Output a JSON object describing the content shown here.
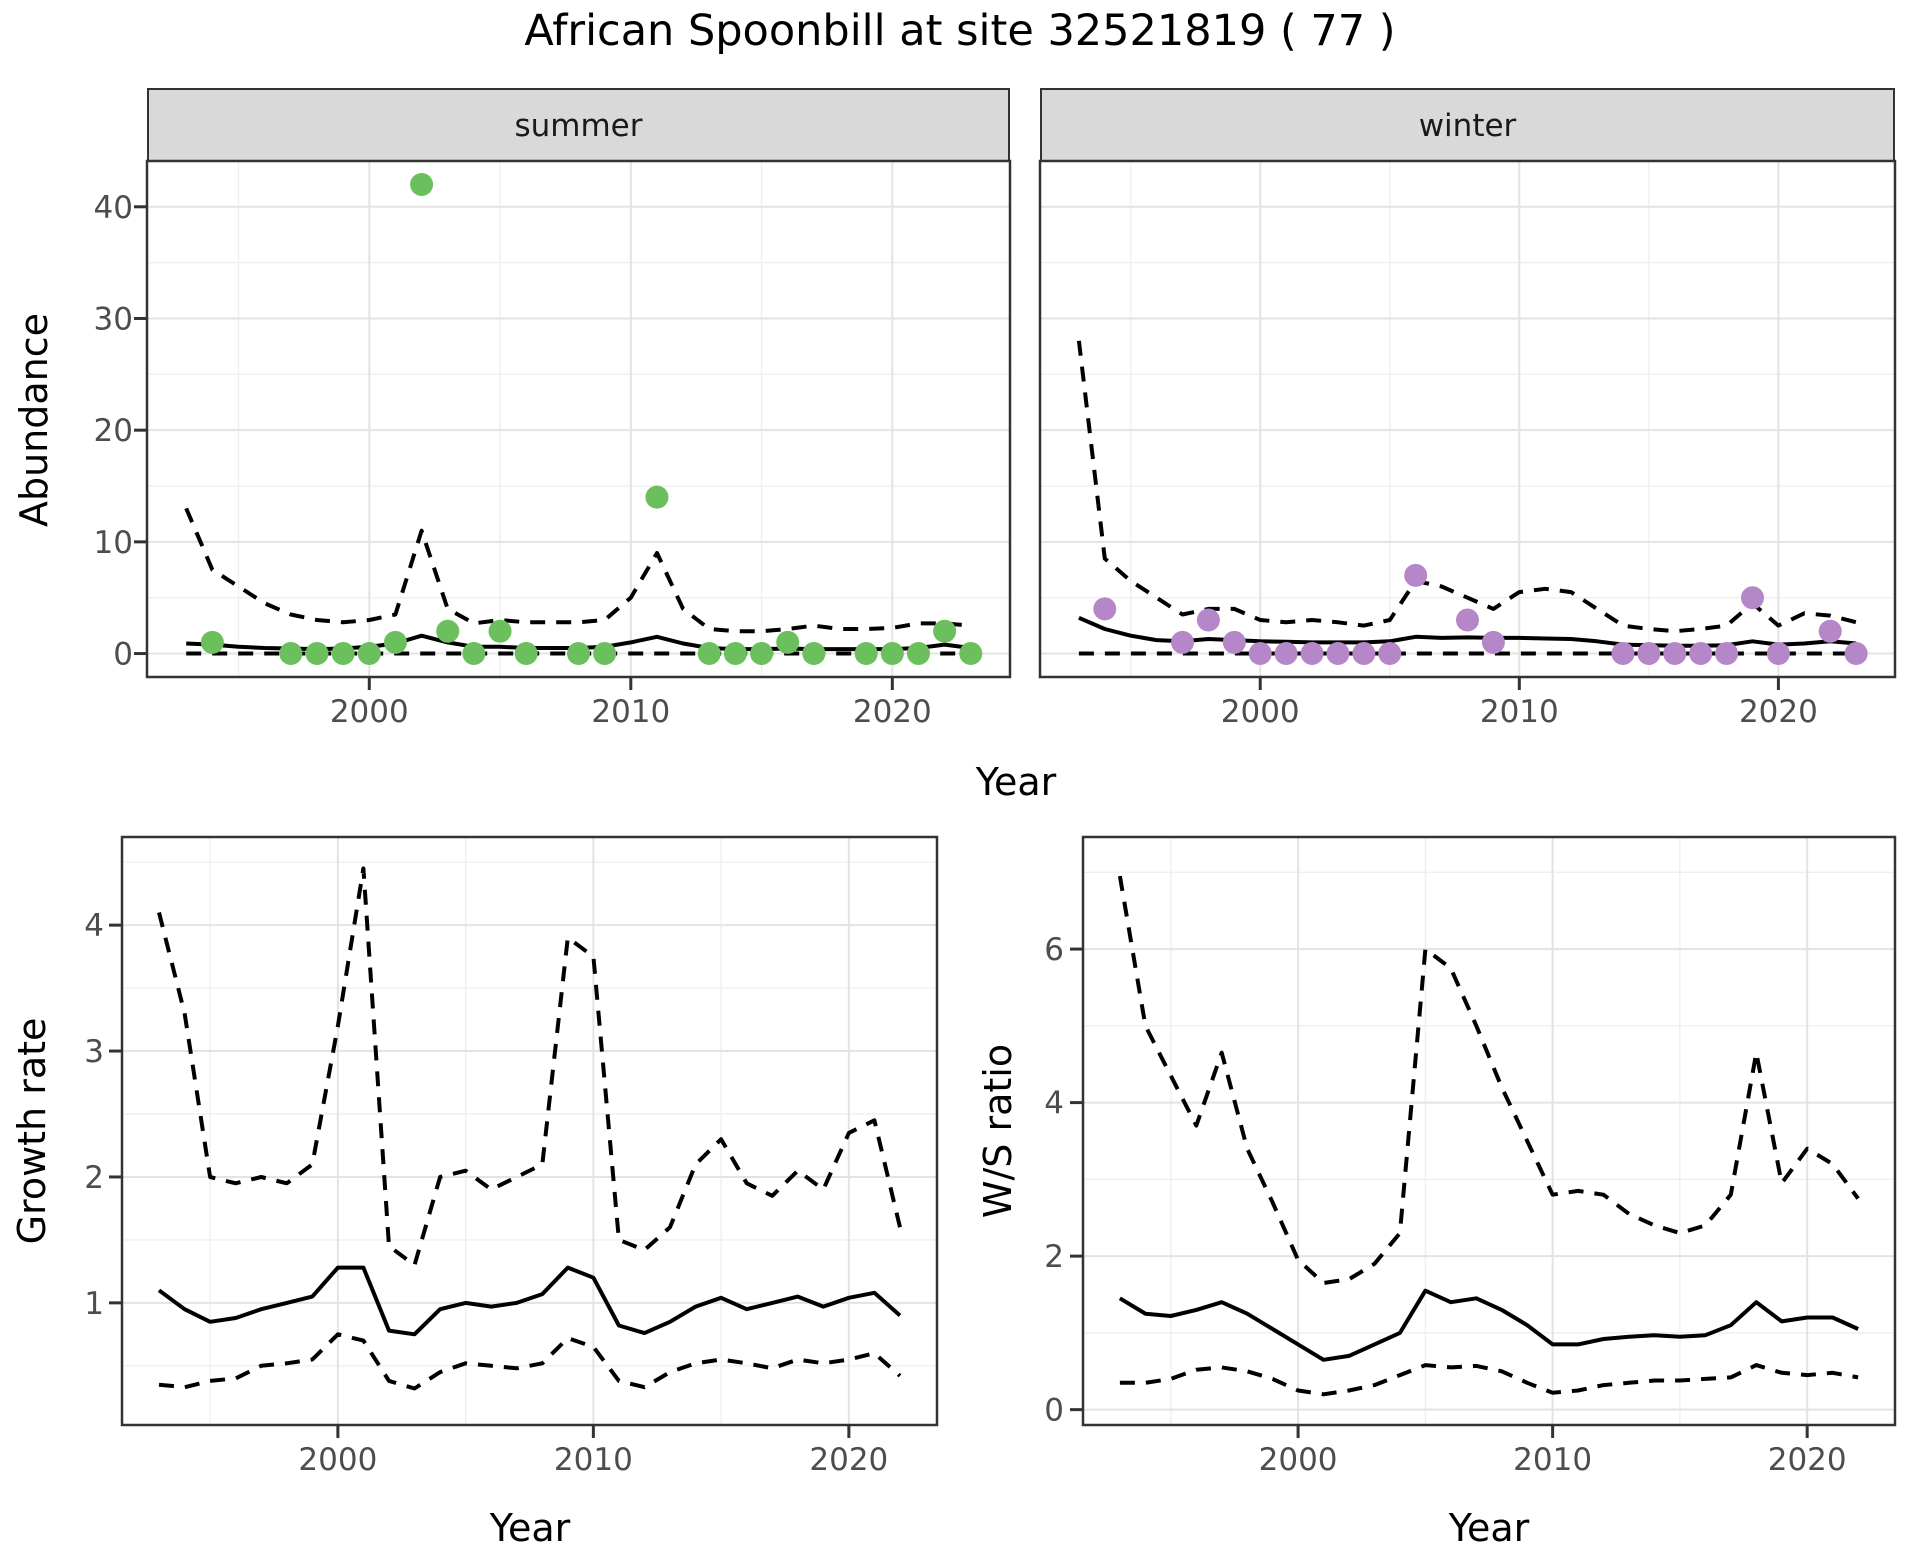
{
  "title": "African Spoonbill at site 32521819 ( 77 )",
  "labels": {
    "year_axis": "Year",
    "abundance_axis": "Abundance",
    "growth_axis": "Growth rate",
    "ws_axis": "W/S ratio",
    "facet_summer": "summer",
    "facet_winter": "winter"
  },
  "colors": {
    "summer_point": "#6bbf5c",
    "winter_point": "#b587c8",
    "line": "#000000",
    "grid_major": "#e3e3e3",
    "grid_minor": "#efefef",
    "strip_bg": "#d9d9d9",
    "panel_border": "#333333",
    "tick_label": "#4d4d4d",
    "tick_mark": "#333333"
  },
  "chart_data": [
    {
      "id": "abundance-summer",
      "type": "line",
      "facet_label": "summer",
      "xlabel": "Year",
      "ylabel": "Abundance",
      "xlim": [
        1991.5,
        2024.5
      ],
      "ylim": [
        -2.1,
        44.1
      ],
      "x_ticks": [
        2000,
        2010,
        2020
      ],
      "x_minor": [
        1995,
        2005,
        2015
      ],
      "y_ticks": [
        0,
        10,
        20,
        30,
        40
      ],
      "y_minor": [
        5,
        15,
        25,
        35
      ],
      "show_y_tick_labels": true,
      "x": [
        1993,
        1994,
        1995,
        1996,
        1997,
        1998,
        1999,
        2000,
        2001,
        2002,
        2003,
        2004,
        2005,
        2006,
        2007,
        2008,
        2009,
        2010,
        2011,
        2012,
        2013,
        2014,
        2015,
        2016,
        2017,
        2018,
        2019,
        2020,
        2021,
        2022,
        2023
      ],
      "series": [
        {
          "name": "median",
          "style": "solid",
          "values": [
            0.9,
            0.8,
            0.6,
            0.5,
            0.45,
            0.4,
            0.45,
            0.6,
            0.9,
            1.6,
            1.0,
            0.6,
            0.6,
            0.5,
            0.5,
            0.5,
            0.6,
            1.0,
            1.5,
            0.9,
            0.5,
            0.4,
            0.4,
            0.45,
            0.4,
            0.4,
            0.4,
            0.4,
            0.5,
            0.8,
            0.5
          ]
        },
        {
          "name": "upper-ci",
          "style": "dashed",
          "values": [
            13,
            7.5,
            6,
            4.5,
            3.5,
            3,
            2.8,
            3,
            3.5,
            11,
            4,
            2.7,
            3,
            2.8,
            2.8,
            2.8,
            3,
            5,
            9,
            4,
            2.2,
            2,
            2,
            2.2,
            2.5,
            2.2,
            2.2,
            2.3,
            2.7,
            2.7,
            2.5
          ]
        },
        {
          "name": "lower-ci",
          "style": "dashed",
          "values": [
            0,
            0,
            0,
            0,
            0,
            0,
            0,
            0,
            0,
            0,
            0,
            0,
            0,
            0,
            0,
            0,
            0,
            0,
            0,
            0,
            0,
            0,
            0,
            0,
            0,
            0,
            0,
            0,
            0,
            0,
            0
          ]
        }
      ],
      "points": {
        "color_key": "summer_point",
        "xy": [
          [
            1994,
            1
          ],
          [
            1997,
            0
          ],
          [
            1998,
            0
          ],
          [
            1999,
            0
          ],
          [
            2000,
            0
          ],
          [
            2001,
            1
          ],
          [
            2002,
            42
          ],
          [
            2003,
            2
          ],
          [
            2004,
            0
          ],
          [
            2005,
            2
          ],
          [
            2006,
            0
          ],
          [
            2008,
            0
          ],
          [
            2009,
            0
          ],
          [
            2011,
            14
          ],
          [
            2013,
            0
          ],
          [
            2014,
            0
          ],
          [
            2015,
            0
          ],
          [
            2016,
            1
          ],
          [
            2017,
            0
          ],
          [
            2019,
            0
          ],
          [
            2020,
            0
          ],
          [
            2021,
            0
          ],
          [
            2022,
            2
          ],
          [
            2023,
            0
          ]
        ]
      }
    },
    {
      "id": "abundance-winter",
      "type": "line",
      "facet_label": "winter",
      "xlabel": "Year",
      "ylabel": "Abundance",
      "xlim": [
        1991.5,
        2024.5
      ],
      "ylim": [
        -2.1,
        44.1
      ],
      "x_ticks": [
        2000,
        2010,
        2020
      ],
      "x_minor": [
        1995,
        2005,
        2015
      ],
      "y_ticks": [
        0,
        10,
        20,
        30,
        40
      ],
      "y_minor": [
        5,
        15,
        25,
        35
      ],
      "show_y_tick_labels": false,
      "x": [
        1993,
        1994,
        1995,
        1996,
        1997,
        1998,
        1999,
        2000,
        2001,
        2002,
        2003,
        2004,
        2005,
        2006,
        2007,
        2008,
        2009,
        2010,
        2011,
        2012,
        2013,
        2014,
        2015,
        2016,
        2017,
        2018,
        2019,
        2020,
        2021,
        2022,
        2023
      ],
      "series": [
        {
          "name": "median",
          "style": "solid",
          "values": [
            3.2,
            2.2,
            1.6,
            1.2,
            1.1,
            1.3,
            1.2,
            1.1,
            1.05,
            1.0,
            1.0,
            1.0,
            1.1,
            1.5,
            1.4,
            1.45,
            1.4,
            1.4,
            1.35,
            1.3,
            1.1,
            0.8,
            0.75,
            0.7,
            0.7,
            0.75,
            1.1,
            0.8,
            0.9,
            1.1,
            0.9
          ]
        },
        {
          "name": "upper-ci",
          "style": "dashed",
          "values": [
            28,
            8.5,
            6.5,
            5,
            3.5,
            4,
            4,
            3,
            2.8,
            3,
            2.8,
            2.5,
            3,
            6.5,
            6,
            5,
            4,
            5.5,
            5.8,
            5.5,
            4,
            2.5,
            2.2,
            2,
            2.2,
            2.5,
            4.5,
            2.5,
            3.6,
            3.4,
            2.8
          ]
        },
        {
          "name": "lower-ci",
          "style": "dashed",
          "values": [
            0,
            0,
            0,
            0,
            0,
            0,
            0,
            0,
            0,
            0,
            0,
            0,
            0,
            0,
            0,
            0,
            0,
            0,
            0,
            0,
            0,
            0,
            0,
            0,
            0,
            0,
            0,
            0,
            0,
            0,
            0
          ]
        }
      ],
      "points": {
        "color_key": "winter_point",
        "xy": [
          [
            1994,
            4
          ],
          [
            1997,
            1
          ],
          [
            1998,
            3
          ],
          [
            1999,
            1
          ],
          [
            2000,
            0
          ],
          [
            2001,
            0
          ],
          [
            2002,
            0
          ],
          [
            2003,
            0
          ],
          [
            2004,
            0
          ],
          [
            2005,
            0
          ],
          [
            2006,
            7
          ],
          [
            2008,
            3
          ],
          [
            2009,
            1
          ],
          [
            2014,
            0
          ],
          [
            2015,
            0
          ],
          [
            2016,
            0
          ],
          [
            2017,
            0
          ],
          [
            2018,
            0
          ],
          [
            2019,
            5
          ],
          [
            2020,
            0
          ],
          [
            2022,
            2
          ],
          [
            2023,
            0
          ]
        ]
      }
    },
    {
      "id": "growth-rate",
      "type": "line",
      "facet_label": "",
      "xlabel": "Year",
      "ylabel": "Growth rate",
      "xlim": [
        1991.55,
        2023.45
      ],
      "ylim": [
        0.03,
        4.7
      ],
      "x_ticks": [
        2000,
        2010,
        2020
      ],
      "x_minor": [
        1995,
        2005,
        2015
      ],
      "y_ticks": [
        1,
        2,
        3,
        4
      ],
      "y_minor": [
        0.5,
        1.5,
        2.5,
        3.5,
        4.5
      ],
      "show_y_tick_labels": true,
      "x": [
        1993,
        1994,
        1995,
        1996,
        1997,
        1998,
        1999,
        2000,
        2001,
        2002,
        2003,
        2004,
        2005,
        2006,
        2007,
        2008,
        2009,
        2010,
        2011,
        2012,
        2013,
        2014,
        2015,
        2016,
        2017,
        2018,
        2019,
        2020,
        2021,
        2022
      ],
      "series": [
        {
          "name": "median",
          "style": "solid",
          "values": [
            1.1,
            0.95,
            0.85,
            0.88,
            0.95,
            1.0,
            1.05,
            1.28,
            1.28,
            0.78,
            0.75,
            0.95,
            1.0,
            0.97,
            1.0,
            1.07,
            1.28,
            1.2,
            0.82,
            0.76,
            0.85,
            0.97,
            1.04,
            0.95,
            1.0,
            1.05,
            0.97,
            1.04,
            1.08,
            0.9
          ]
        },
        {
          "name": "upper-ci",
          "style": "dashed",
          "values": [
            4.1,
            3.3,
            2.0,
            1.95,
            2.0,
            1.95,
            2.1,
            3.2,
            4.45,
            1.45,
            1.3,
            2.0,
            2.05,
            1.9,
            2.0,
            2.1,
            3.9,
            3.75,
            1.5,
            1.42,
            1.6,
            2.1,
            2.3,
            1.95,
            1.85,
            2.05,
            1.9,
            2.35,
            2.45,
            1.6
          ]
        },
        {
          "name": "lower-ci",
          "style": "dashed",
          "values": [
            0.35,
            0.33,
            0.38,
            0.4,
            0.5,
            0.52,
            0.55,
            0.75,
            0.7,
            0.38,
            0.32,
            0.45,
            0.52,
            0.5,
            0.48,
            0.52,
            0.72,
            0.65,
            0.38,
            0.33,
            0.45,
            0.52,
            0.55,
            0.52,
            0.48,
            0.55,
            0.52,
            0.55,
            0.6,
            0.42
          ]
        }
      ],
      "points": null
    },
    {
      "id": "ws-ratio",
      "type": "line",
      "facet_label": "",
      "xlabel": "Year",
      "ylabel": "W/S ratio",
      "xlim": [
        1991.55,
        2023.45
      ],
      "ylim": [
        -0.2,
        7.46
      ],
      "x_ticks": [
        2000,
        2010,
        2020
      ],
      "x_minor": [
        1995,
        2005,
        2015
      ],
      "y_ticks": [
        0,
        2,
        4,
        6
      ],
      "y_minor": [
        1,
        3,
        5,
        7
      ],
      "show_y_tick_labels": true,
      "x": [
        1993,
        1994,
        1995,
        1996,
        1997,
        1998,
        1999,
        2000,
        2001,
        2002,
        2003,
        2004,
        2005,
        2006,
        2007,
        2008,
        2009,
        2010,
        2011,
        2012,
        2013,
        2014,
        2015,
        2016,
        2017,
        2018,
        2019,
        2020,
        2021,
        2022
      ],
      "series": [
        {
          "name": "median",
          "style": "solid",
          "values": [
            1.45,
            1.25,
            1.22,
            1.3,
            1.4,
            1.25,
            1.05,
            0.85,
            0.65,
            0.7,
            0.85,
            1.0,
            1.55,
            1.4,
            1.45,
            1.3,
            1.1,
            0.85,
            0.85,
            0.92,
            0.95,
            0.97,
            0.95,
            0.97,
            1.1,
            1.4,
            1.15,
            1.2,
            1.2,
            1.05
          ]
        },
        {
          "name": "upper-ci",
          "style": "dashed",
          "values": [
            6.95,
            5.0,
            4.35,
            3.7,
            4.65,
            3.4,
            2.7,
            1.95,
            1.65,
            1.7,
            1.9,
            2.3,
            6.0,
            5.75,
            5.0,
            4.2,
            3.5,
            2.8,
            2.85,
            2.8,
            2.55,
            2.4,
            2.3,
            2.4,
            2.8,
            4.65,
            2.95,
            3.4,
            3.2,
            2.75
          ]
        },
        {
          "name": "lower-ci",
          "style": "dashed",
          "values": [
            0.35,
            0.35,
            0.4,
            0.52,
            0.55,
            0.5,
            0.4,
            0.25,
            0.2,
            0.25,
            0.32,
            0.45,
            0.58,
            0.55,
            0.57,
            0.5,
            0.35,
            0.22,
            0.25,
            0.32,
            0.35,
            0.38,
            0.38,
            0.4,
            0.42,
            0.58,
            0.48,
            0.45,
            0.48,
            0.42
          ]
        }
      ],
      "points": null
    }
  ]
}
